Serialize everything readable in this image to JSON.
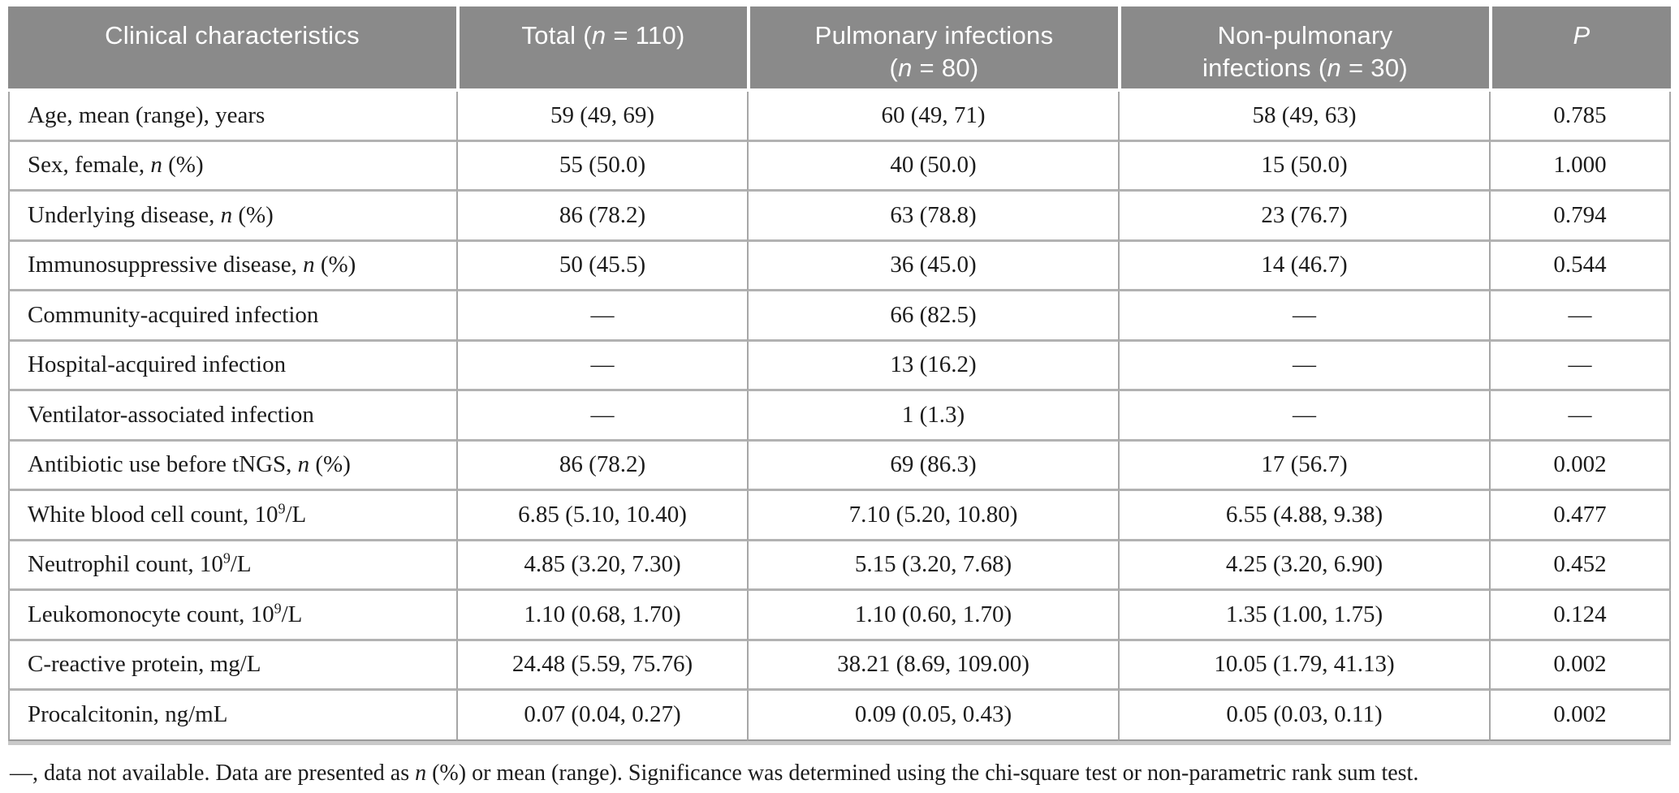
{
  "table": {
    "title_semantic": "Clinical characteristics of patients by infection group",
    "colors": {
      "header_bg": "#8a8a8a",
      "header_text": "#ffffff",
      "grid_line": "#a6a6a6",
      "bottom_rule": "#9a9a9a"
    },
    "columns": [
      {
        "label": "Clinical characteristics"
      },
      {
        "label": "Total (*n* = 110)"
      },
      {
        "label": "Pulmonary infections\n(*n* = 80)"
      },
      {
        "label": "Non-pulmonary\ninfections (*n* = 30)"
      },
      {
        "label": "*P*"
      }
    ],
    "rows": [
      {
        "label": "Age, mean (range), years",
        "total": "59 (49, 69)",
        "pulmonary": "60 (49, 71)",
        "non_pulmonary": "58 (49, 63)",
        "p": "0.785"
      },
      {
        "label": "Sex, female, *n* (%)",
        "total": "55 (50.0)",
        "pulmonary": "40 (50.0)",
        "non_pulmonary": "15 (50.0)",
        "p": "1.000"
      },
      {
        "label": "Underlying disease, *n* (%)",
        "total": "86 (78.2)",
        "pulmonary": "63 (78.8)",
        "non_pulmonary": "23 (76.7)",
        "p": "0.794"
      },
      {
        "label": "Immunosuppressive disease, *n* (%)",
        "total": "50 (45.5)",
        "pulmonary": "36 (45.0)",
        "non_pulmonary": "14 (46.7)",
        "p": "0.544"
      },
      {
        "label": "Community-acquired infection",
        "total": "—",
        "pulmonary": "66 (82.5)",
        "non_pulmonary": "—",
        "p": "—"
      },
      {
        "label": "Hospital-acquired infection",
        "total": "—",
        "pulmonary": "13 (16.2)",
        "non_pulmonary": "—",
        "p": "—"
      },
      {
        "label": "Ventilator-associated infection",
        "total": "—",
        "pulmonary": "1 (1.3)",
        "non_pulmonary": "—",
        "p": "—"
      },
      {
        "label": "Antibiotic use before tNGS, *n* (%)",
        "total": "86 (78.2)",
        "pulmonary": "69 (86.3)",
        "non_pulmonary": "17 (56.7)",
        "p": "0.002"
      },
      {
        "label": "White blood cell count, 10^9^/L",
        "total": "6.85 (5.10, 10.40)",
        "pulmonary": "7.10 (5.20, 10.80)",
        "non_pulmonary": "6.55 (4.88, 9.38)",
        "p": "0.477"
      },
      {
        "label": "Neutrophil count, 10^9^/L",
        "total": "4.85 (3.20, 7.30)",
        "pulmonary": "5.15 (3.20, 7.68)",
        "non_pulmonary": "4.25 (3.20, 6.90)",
        "p": "0.452"
      },
      {
        "label": "Leukomonocyte count, 10^9^/L",
        "total": "1.10 (0.68, 1.70)",
        "pulmonary": "1.10 (0.60, 1.70)",
        "non_pulmonary": "1.35 (1.00, 1.75)",
        "p": "0.124"
      },
      {
        "label": "C-reactive protein, mg/L",
        "total": "24.48 (5.59, 75.76)",
        "pulmonary": "38.21 (8.69, 109.00)",
        "non_pulmonary": "10.05 (1.79, 41.13)",
        "p": "0.002"
      },
      {
        "label": "Procalcitonin, ng/mL",
        "total": "0.07 (0.04, 0.27)",
        "pulmonary": "0.09 (0.05, 0.43)",
        "non_pulmonary": "0.05 (0.03, 0.11)",
        "p": "0.002"
      }
    ],
    "footnote": "—, data not available. Data are presented as *n* (%) or mean (range). Significance was determined using the chi-square test or non-parametric rank sum test."
  }
}
